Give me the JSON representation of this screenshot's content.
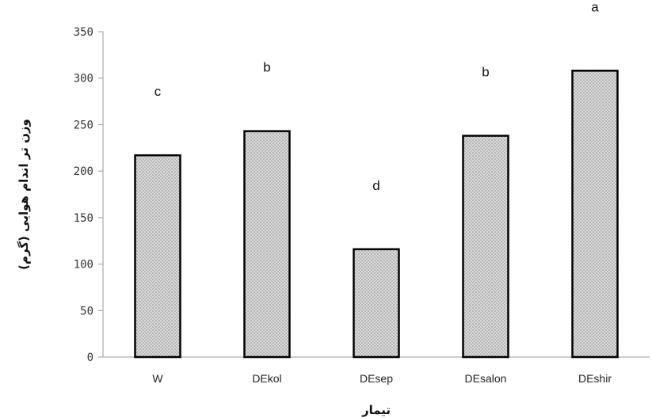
{
  "chart_data": {
    "type": "bar",
    "title": "",
    "xlabel": "تیمار",
    "ylabel": "وزن تر اندام هوایی (گرم)",
    "categories": [
      "W",
      "DEkol",
      "DEsep",
      "DEsalon",
      "DEshir"
    ],
    "values": [
      217,
      243,
      116,
      238,
      308
    ],
    "data_labels": [
      "c",
      "b",
      "d",
      "b",
      "a"
    ],
    "ylim": [
      0,
      350
    ],
    "yticks": [
      0,
      50,
      100,
      150,
      200,
      250,
      300,
      350
    ],
    "grid": false,
    "legend": "none",
    "colors": {
      "bar_fill": "#d9d9d9",
      "bar_dots": "#8a8a8a",
      "bar_edge": "#000000",
      "axis": "#999999"
    }
  }
}
